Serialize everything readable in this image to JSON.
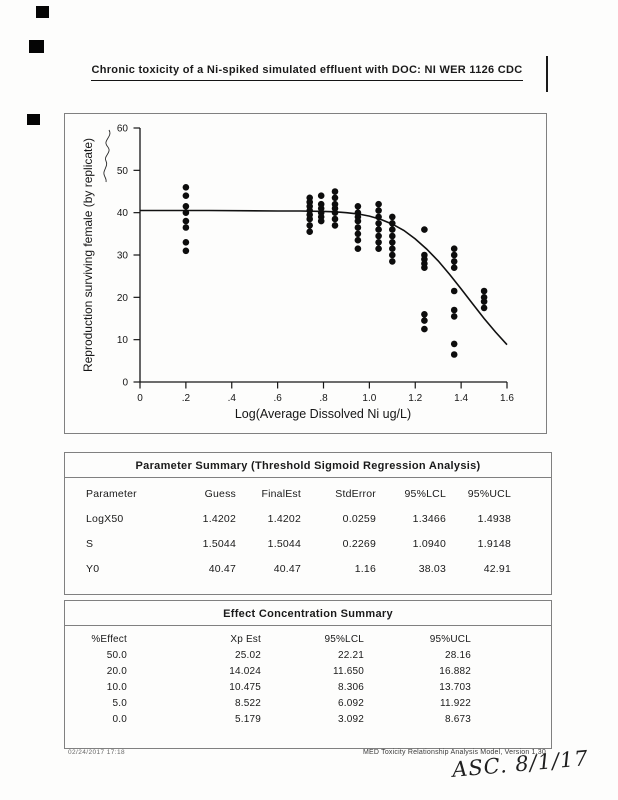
{
  "page": {
    "title": "Chronic toxicity of a Ni-spiked simulated effluent with DOC: NI WER 1126 CDC",
    "footer_left": "02/24/2017  17:18",
    "footer_right": "MED Toxicity Relationship Analysis Model, Version 1.30",
    "handwritten_note": "ASC. 8/1/17"
  },
  "chart_data": {
    "type": "scatter",
    "title": "",
    "xlabel": "Log(Average Dissolved Ni ug/L)",
    "ylabel": "Reproduction surviving female (by replicate)",
    "xlim": [
      0,
      1.6
    ],
    "ylim": [
      0,
      60
    ],
    "x_ticks": [
      "0",
      ".2",
      ".4",
      ".6",
      ".8",
      "1.0",
      "1.2",
      "1.4",
      "1.6"
    ],
    "y_ticks": [
      "0",
      "10",
      "20",
      "30",
      "40",
      "50",
      "60"
    ],
    "grid": false,
    "points": [
      [
        0.2,
        46
      ],
      [
        0.2,
        44
      ],
      [
        0.2,
        41.5
      ],
      [
        0.2,
        40
      ],
      [
        0.2,
        38
      ],
      [
        0.2,
        36.5
      ],
      [
        0.2,
        33
      ],
      [
        0.2,
        31
      ],
      [
        0.74,
        43.5
      ],
      [
        0.74,
        42.5
      ],
      [
        0.74,
        41.5
      ],
      [
        0.74,
        40.5
      ],
      [
        0.74,
        39.5
      ],
      [
        0.74,
        38.5
      ],
      [
        0.74,
        37
      ],
      [
        0.74,
        35.5
      ],
      [
        0.79,
        44
      ],
      [
        0.79,
        42
      ],
      [
        0.79,
        41
      ],
      [
        0.79,
        40
      ],
      [
        0.79,
        39
      ],
      [
        0.79,
        38
      ],
      [
        0.85,
        45
      ],
      [
        0.85,
        43.5
      ],
      [
        0.85,
        42
      ],
      [
        0.85,
        41
      ],
      [
        0.85,
        40
      ],
      [
        0.85,
        38.5
      ],
      [
        0.85,
        37
      ],
      [
        0.95,
        41.5
      ],
      [
        0.95,
        40
      ],
      [
        0.95,
        39
      ],
      [
        0.95,
        38
      ],
      [
        0.95,
        36.5
      ],
      [
        0.95,
        35
      ],
      [
        0.95,
        33.5
      ],
      [
        0.95,
        31.5
      ],
      [
        1.04,
        42
      ],
      [
        1.04,
        40.5
      ],
      [
        1.04,
        39
      ],
      [
        1.04,
        37.5
      ],
      [
        1.04,
        36
      ],
      [
        1.04,
        34.5
      ],
      [
        1.04,
        33
      ],
      [
        1.04,
        31.5
      ],
      [
        1.1,
        39
      ],
      [
        1.1,
        37.5
      ],
      [
        1.1,
        36
      ],
      [
        1.1,
        34.5
      ],
      [
        1.1,
        33
      ],
      [
        1.1,
        31.5
      ],
      [
        1.1,
        30
      ],
      [
        1.1,
        28.5
      ],
      [
        1.24,
        36
      ],
      [
        1.24,
        30
      ],
      [
        1.24,
        29
      ],
      [
        1.24,
        28
      ],
      [
        1.24,
        27
      ],
      [
        1.24,
        16
      ],
      [
        1.24,
        14.5
      ],
      [
        1.24,
        12.5
      ],
      [
        1.37,
        31.5
      ],
      [
        1.37,
        30
      ],
      [
        1.37,
        28.5
      ],
      [
        1.37,
        27
      ],
      [
        1.37,
        21.5
      ],
      [
        1.37,
        17
      ],
      [
        1.37,
        15.5
      ],
      [
        1.37,
        9
      ],
      [
        1.37,
        6.5
      ],
      [
        1.5,
        21.5
      ],
      [
        1.5,
        20
      ],
      [
        1.5,
        19
      ],
      [
        1.5,
        17.5
      ]
    ],
    "fit_curve": {
      "model": "threshold sigmoid",
      "points": [
        [
          0,
          40.5
        ],
        [
          0.3,
          40.5
        ],
        [
          0.6,
          40.4
        ],
        [
          0.7,
          40.4
        ],
        [
          0.8,
          40.3
        ],
        [
          0.85,
          40.2
        ],
        [
          0.9,
          40.0
        ],
        [
          0.95,
          39.7
        ],
        [
          1.0,
          39.2
        ],
        [
          1.05,
          38.4
        ],
        [
          1.1,
          37.3
        ],
        [
          1.15,
          35.8
        ],
        [
          1.2,
          33.8
        ],
        [
          1.25,
          31.4
        ],
        [
          1.3,
          28.6
        ],
        [
          1.35,
          25.4
        ],
        [
          1.4,
          22.0
        ],
        [
          1.45,
          18.5
        ],
        [
          1.5,
          15.0
        ],
        [
          1.55,
          11.8
        ],
        [
          1.6,
          8.8
        ]
      ]
    }
  },
  "parameter_summary": {
    "title": "Parameter Summary (Threshold Sigmoid Regression Analysis)",
    "headers": [
      "Parameter",
      "Guess",
      "FinalEst",
      "StdError",
      "95%LCL",
      "95%UCL"
    ],
    "rows": [
      [
        "LogX50",
        "1.4202",
        "1.4202",
        "0.0259",
        "1.3466",
        "1.4938"
      ],
      [
        "S",
        "1.5044",
        "1.5044",
        "0.2269",
        "1.0940",
        "1.9148"
      ],
      [
        "Y0",
        "40.47",
        "40.47",
        "1.16",
        "38.03",
        "42.91"
      ]
    ]
  },
  "effect_summary": {
    "title": "Effect Concentration Summary",
    "headers": [
      "%Effect",
      "Xp Est",
      "95%LCL",
      "95%UCL"
    ],
    "rows": [
      [
        "50.0",
        "25.02",
        "22.21",
        "28.16"
      ],
      [
        "20.0",
        "14.024",
        "11.650",
        "16.882"
      ],
      [
        "10.0",
        "10.475",
        "8.306",
        "13.703"
      ],
      [
        "5.0",
        "8.522",
        "6.092",
        "11.922"
      ],
      [
        "0.0",
        "5.179",
        "3.092",
        "8.673"
      ]
    ]
  }
}
